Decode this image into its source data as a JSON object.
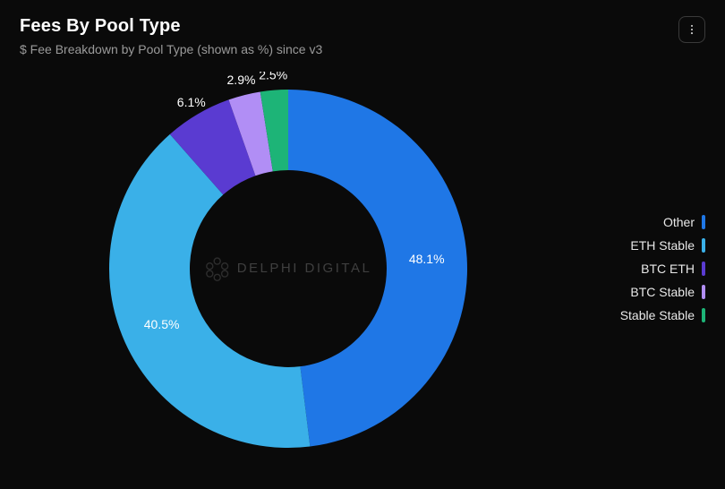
{
  "header": {
    "title": "Fees By Pool Type",
    "subtitle": "$ Fee Breakdown by Pool Type (shown as %) since v3"
  },
  "watermark": {
    "text": "DELPHI DIGITAL",
    "color": "#3f3f3f"
  },
  "chart": {
    "type": "donut",
    "background_color": "#0a0a0a",
    "inner_radius_ratio": 0.55,
    "outer_radius": 200,
    "start_angle_deg": 0,
    "label_fontsize": 14,
    "label_color": "#ffffff",
    "slices": [
      {
        "name": "Other",
        "value": 48.1,
        "label": "48.1%",
        "color": "#1f77e6"
      },
      {
        "name": "ETH Stable",
        "value": 40.5,
        "label": "40.5%",
        "color": "#3ab0e8"
      },
      {
        "name": "BTC ETH",
        "value": 6.1,
        "label": "6.1%",
        "color": "#5a3bd1"
      },
      {
        "name": "BTC Stable",
        "value": 2.9,
        "label": "2.9%",
        "color": "#b18ef5"
      },
      {
        "name": "Stable Stable",
        "value": 2.5,
        "label": "2.5%",
        "color": "#1db477"
      }
    ]
  },
  "legend": {
    "fontsize": 14,
    "text_color": "#e8e8e8",
    "items": [
      {
        "label": "Other",
        "color": "#1f77e6"
      },
      {
        "label": "ETH Stable",
        "color": "#3ab0e8"
      },
      {
        "label": "BTC ETH",
        "color": "#5a3bd1"
      },
      {
        "label": "BTC Stable",
        "color": "#b18ef5"
      },
      {
        "label": "Stable Stable",
        "color": "#1db477"
      }
    ]
  },
  "icons": {
    "more": "more-vertical"
  }
}
